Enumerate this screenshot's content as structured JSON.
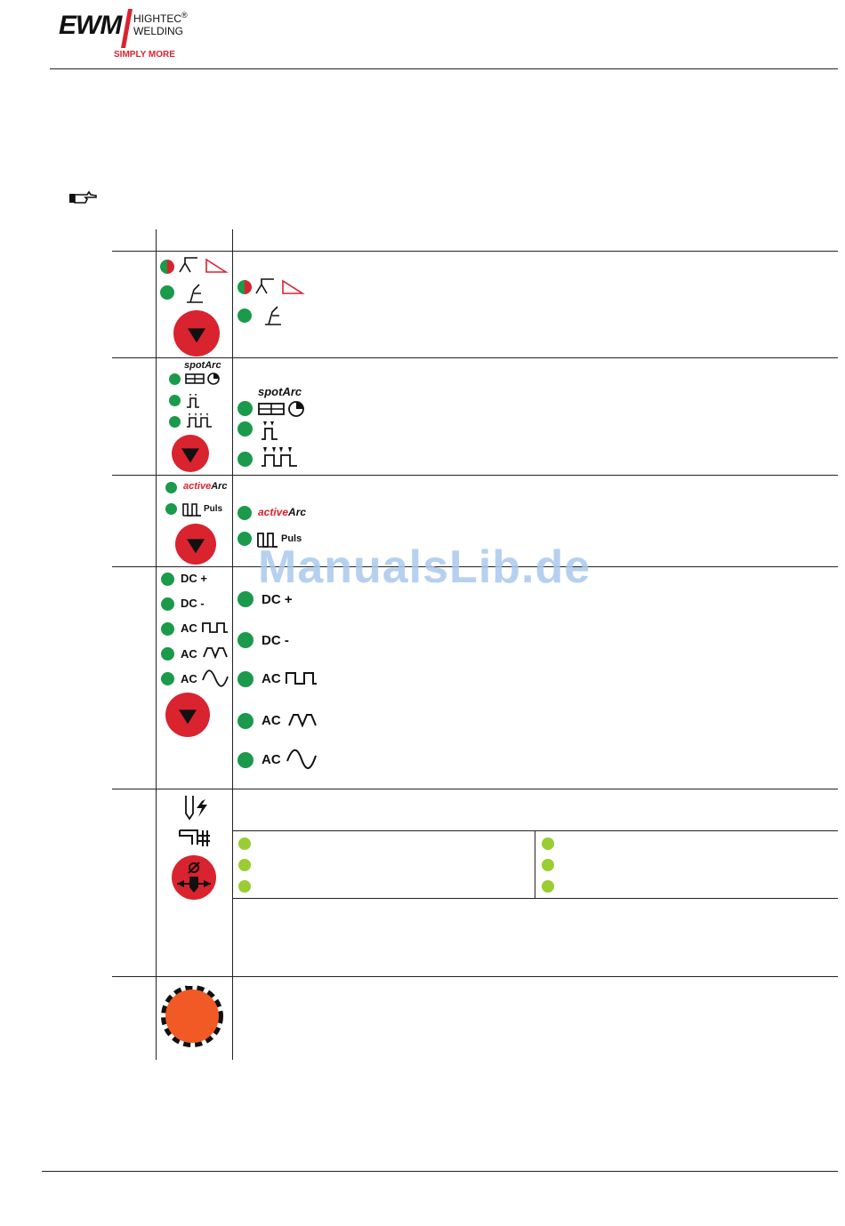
{
  "header": {
    "logo_main": "EWM",
    "logo_line1": "HIGHTEC",
    "logo_line2": "WELDING",
    "logo_tagline": "SIMPLY MORE",
    "registered": "®"
  },
  "rows": {
    "spotarc_label": "spotArc",
    "activarc_active": "active",
    "activarc_arc": "Arc",
    "puls_label": "Puls",
    "dc_plus": "DC +",
    "dc_minus": "DC -",
    "ac_label": "AC"
  },
  "watermark": "ManualsLib.de",
  "colors": {
    "led_green": "#1a9a4a",
    "led_lime": "#9acd32",
    "button_red": "#d9232e",
    "knob_orange": "#f15a24"
  }
}
